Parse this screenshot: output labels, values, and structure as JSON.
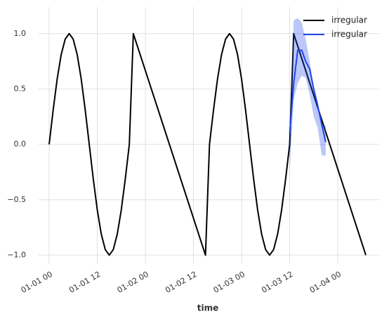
{
  "chart_data": {
    "type": "line",
    "xlabel": "time",
    "x": [
      "01-01 00",
      "01-01 01",
      "01-01 02",
      "01-01 03",
      "01-01 04",
      "01-01 05",
      "01-01 06",
      "01-01 07",
      "01-01 08",
      "01-01 09",
      "01-01 10",
      "01-01 11",
      "01-01 12",
      "01-01 13",
      "01-01 14",
      "01-01 15",
      "01-01 16",
      "01-01 17",
      "01-01 18",
      "01-01 19",
      "01-01 20",
      "01-01 21",
      "01-02 15",
      "01-02 16",
      "01-02 17",
      "01-02 18",
      "01-02 19",
      "01-02 20",
      "01-02 21",
      "01-02 22",
      "01-02 23",
      "01-03 00",
      "01-03 01",
      "01-03 02",
      "01-03 03",
      "01-03 04",
      "01-03 05",
      "01-03 06",
      "01-03 07",
      "01-03 08",
      "01-03 09",
      "01-03 10",
      "01-03 11",
      "01-03 12",
      "01-03 13",
      "01-04 07"
    ],
    "series": [
      {
        "name": "irregular",
        "color": "#000000",
        "values": [
          0,
          0.31,
          0.59,
          0.81,
          0.95,
          1,
          0.95,
          0.81,
          0.59,
          0.31,
          0,
          -0.31,
          -0.59,
          -0.81,
          -0.95,
          -1,
          -0.95,
          -0.81,
          -0.59,
          -0.31,
          0,
          1,
          -1,
          0,
          0.31,
          0.59,
          0.81,
          0.95,
          1,
          0.95,
          0.81,
          0.59,
          0.31,
          0,
          -0.31,
          -0.59,
          -0.81,
          -0.95,
          -1,
          -0.95,
          -0.81,
          -0.59,
          -0.31,
          0,
          1,
          -1
        ]
      },
      {
        "name": "irregular",
        "color": "#1f45e8",
        "x": [
          "01-03 12",
          "01-03 13",
          "01-03 14",
          "01-03 15",
          "01-03 16",
          "01-03 17",
          "01-03 18",
          "01-03 19",
          "01-03 20",
          "01-03 21"
        ],
        "values": [
          0.1,
          0.55,
          0.85,
          0.85,
          0.75,
          0.68,
          0.5,
          0.35,
          0.18,
          0.02
        ],
        "lower": [
          -0.25,
          0.4,
          0.55,
          0.62,
          0.6,
          0.45,
          0.25,
          0.15,
          -0.1,
          -0.1
        ],
        "upper": [
          0.1,
          1.12,
          1.14,
          1.1,
          0.95,
          0.75,
          0.5,
          0.38,
          0.18,
          0.17
        ]
      }
    ],
    "xlim": [
      "01-01 00",
      "01-04 07"
    ],
    "xticks": [
      "01-01 00",
      "01-01 12",
      "01-02 00",
      "01-02 12",
      "01-03 00",
      "01-03 12",
      "01-04 00"
    ],
    "ylim": [
      -1.08,
      1.24
    ],
    "yticks": [
      {
        "value": -1,
        "label": "−1.0"
      },
      {
        "value": -0.5,
        "label": "−0.5"
      },
      {
        "value": 0,
        "label": "0.0"
      },
      0.5,
      {
        "value": 1,
        "label": "1.0"
      }
    ],
    "grid": true,
    "legend": "upper right"
  }
}
